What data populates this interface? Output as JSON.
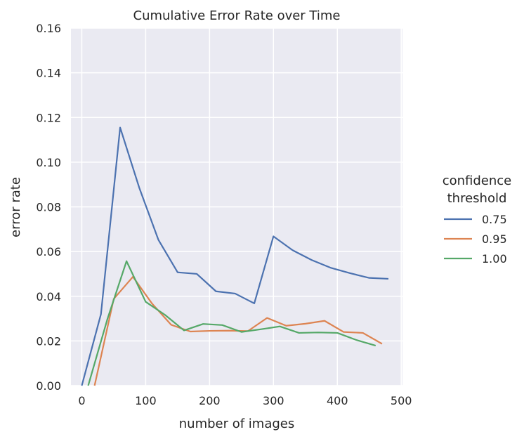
{
  "chart_data": {
    "type": "line",
    "title": "Cumulative Error Rate over Time",
    "xlabel": "number of images",
    "ylabel": "error rate",
    "xlim": [
      -17,
      502
    ],
    "ylim": [
      0,
      0.16
    ],
    "xticks": [
      "0",
      "100",
      "200",
      "300",
      "400",
      "500"
    ],
    "yticks": [
      "0.00",
      "0.02",
      "0.04",
      "0.06",
      "0.08",
      "0.10",
      "0.12",
      "0.14",
      "0.16"
    ],
    "grid": true,
    "legend": {
      "title_line1": "confidence",
      "title_line2": "threshold",
      "placement": "right"
    },
    "colors": {
      "background": "#eaeaf2",
      "grid": "#ffffff",
      "text": "#262626"
    },
    "series": [
      {
        "name": "0.75",
        "color": "#4c72b0",
        "points": [
          [
            0,
            0.0
          ],
          [
            30,
            0.032
          ],
          [
            60,
            0.1155
          ],
          [
            90,
            0.0885
          ],
          [
            120,
            0.0652
          ],
          [
            150,
            0.0507
          ],
          [
            180,
            0.05
          ],
          [
            210,
            0.0422
          ],
          [
            240,
            0.0412
          ],
          [
            270,
            0.0368
          ],
          [
            300,
            0.0668
          ],
          [
            330,
            0.0606
          ],
          [
            360,
            0.0562
          ],
          [
            390,
            0.0527
          ],
          [
            420,
            0.0503
          ],
          [
            450,
            0.0482
          ],
          [
            480,
            0.0478
          ]
        ]
      },
      {
        "name": "0.95",
        "color": "#dd8452",
        "points": [
          [
            20,
            0.0
          ],
          [
            50,
            0.0388
          ],
          [
            80,
            0.0487
          ],
          [
            110,
            0.0367
          ],
          [
            140,
            0.0272
          ],
          [
            170,
            0.0242
          ],
          [
            200,
            0.0245
          ],
          [
            230,
            0.0246
          ],
          [
            260,
            0.0244
          ],
          [
            290,
            0.0303
          ],
          [
            320,
            0.0268
          ],
          [
            350,
            0.0277
          ],
          [
            380,
            0.029
          ],
          [
            410,
            0.024
          ],
          [
            440,
            0.0236
          ],
          [
            470,
            0.0187
          ]
        ]
      },
      {
        "name": "1.00",
        "color": "#55a868",
        "points": [
          [
            10,
            0.0
          ],
          [
            40,
            0.0297
          ],
          [
            70,
            0.0557
          ],
          [
            100,
            0.0375
          ],
          [
            130,
            0.0317
          ],
          [
            160,
            0.0247
          ],
          [
            190,
            0.0276
          ],
          [
            220,
            0.0271
          ],
          [
            250,
            0.024
          ],
          [
            280,
            0.0252
          ],
          [
            310,
            0.0265
          ],
          [
            340,
            0.0236
          ],
          [
            370,
            0.0238
          ],
          [
            400,
            0.0236
          ],
          [
            430,
            0.0204
          ],
          [
            460,
            0.0179
          ]
        ]
      }
    ]
  }
}
